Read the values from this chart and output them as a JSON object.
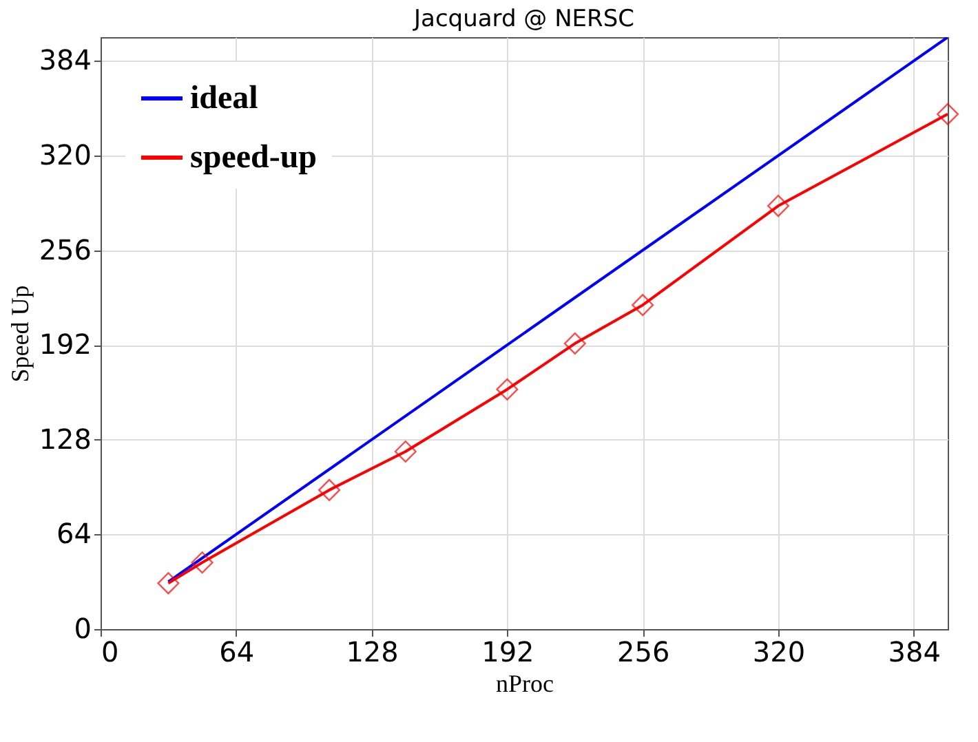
{
  "chart_data": {
    "type": "line",
    "title": "Jacquard @ NERSC",
    "xlabel": "nProc",
    "ylabel": "Speed Up",
    "xlim": [
      0,
      400
    ],
    "ylim": [
      0,
      400
    ],
    "xticks": [
      0,
      64,
      128,
      192,
      256,
      320,
      384
    ],
    "yticks": [
      0,
      64,
      128,
      192,
      256,
      320,
      384
    ],
    "grid": true,
    "legend": "top left",
    "line_style": "solid",
    "series": [
      {
        "name": "ideal",
        "color": "#0000ff",
        "marker": "none",
        "x": [
          32,
          400
        ],
        "values": [
          32,
          400
        ]
      },
      {
        "name": "speed-up",
        "color": "#ff0000",
        "marker": "diamond",
        "x": [
          32,
          48,
          108,
          144,
          192,
          224,
          256,
          320,
          400
        ],
        "values": [
          31,
          45,
          94,
          120,
          162,
          193,
          219,
          286,
          348
        ]
      }
    ]
  }
}
